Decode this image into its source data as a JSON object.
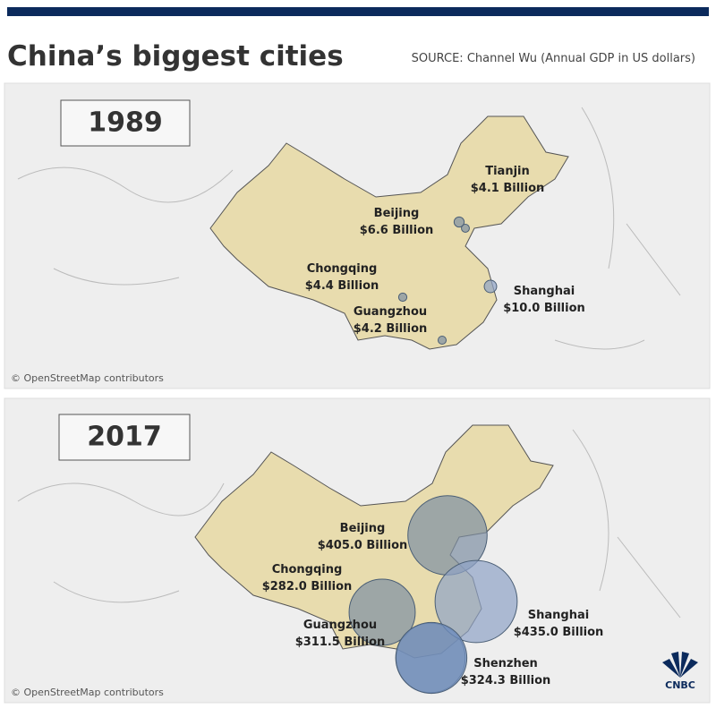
{
  "header": {
    "title": "China’s biggest cities",
    "source": "SOURCE: Channel Wu (Annual GDP in US dollars)"
  },
  "panels": [
    {
      "year": "1989",
      "attribution": "© OpenStreetMap contributors",
      "cities": [
        {
          "name": "Tianjin",
          "gdp_billion": 4.1,
          "label": "$4.1 Billion",
          "color": "#7d8ea3"
        },
        {
          "name": "Beijing",
          "gdp_billion": 6.6,
          "label": "$6.6 Billion",
          "color": "#7d8ea3"
        },
        {
          "name": "Chongqing",
          "gdp_billion": 4.4,
          "label": "$4.4 Billion",
          "color": "#7d8ea3"
        },
        {
          "name": "Guangzhou",
          "gdp_billion": 4.2,
          "label": "$4.2 Billion",
          "color": "#7d8ea3"
        },
        {
          "name": "Shanghai",
          "gdp_billion": 10.0,
          "label": "$10.0 Billion",
          "color": "#8ea3c6"
        }
      ]
    },
    {
      "year": "2017",
      "attribution": "© OpenStreetMap contributors",
      "cities": [
        {
          "name": "Beijing",
          "gdp_billion": 405.0,
          "label": "$405.0 Billion",
          "color": "#7d8ea3"
        },
        {
          "name": "Chongqing",
          "gdp_billion": 282.0,
          "label": "$282.0 Billion",
          "color": "#7d8ea3"
        },
        {
          "name": "Guangzhou",
          "gdp_billion": 311.5,
          "label": "$311.5 Billion",
          "color": "#7d8ea3"
        },
        {
          "name": "Shanghai",
          "gdp_billion": 435.0,
          "label": "$435.0 Billion",
          "color": "#8ea3c6"
        },
        {
          "name": "Shenzhen",
          "gdp_billion": 324.3,
          "label": "$324.3 Billion",
          "color": "#6f8fc0"
        }
      ]
    }
  ],
  "logo": "CNBC"
}
